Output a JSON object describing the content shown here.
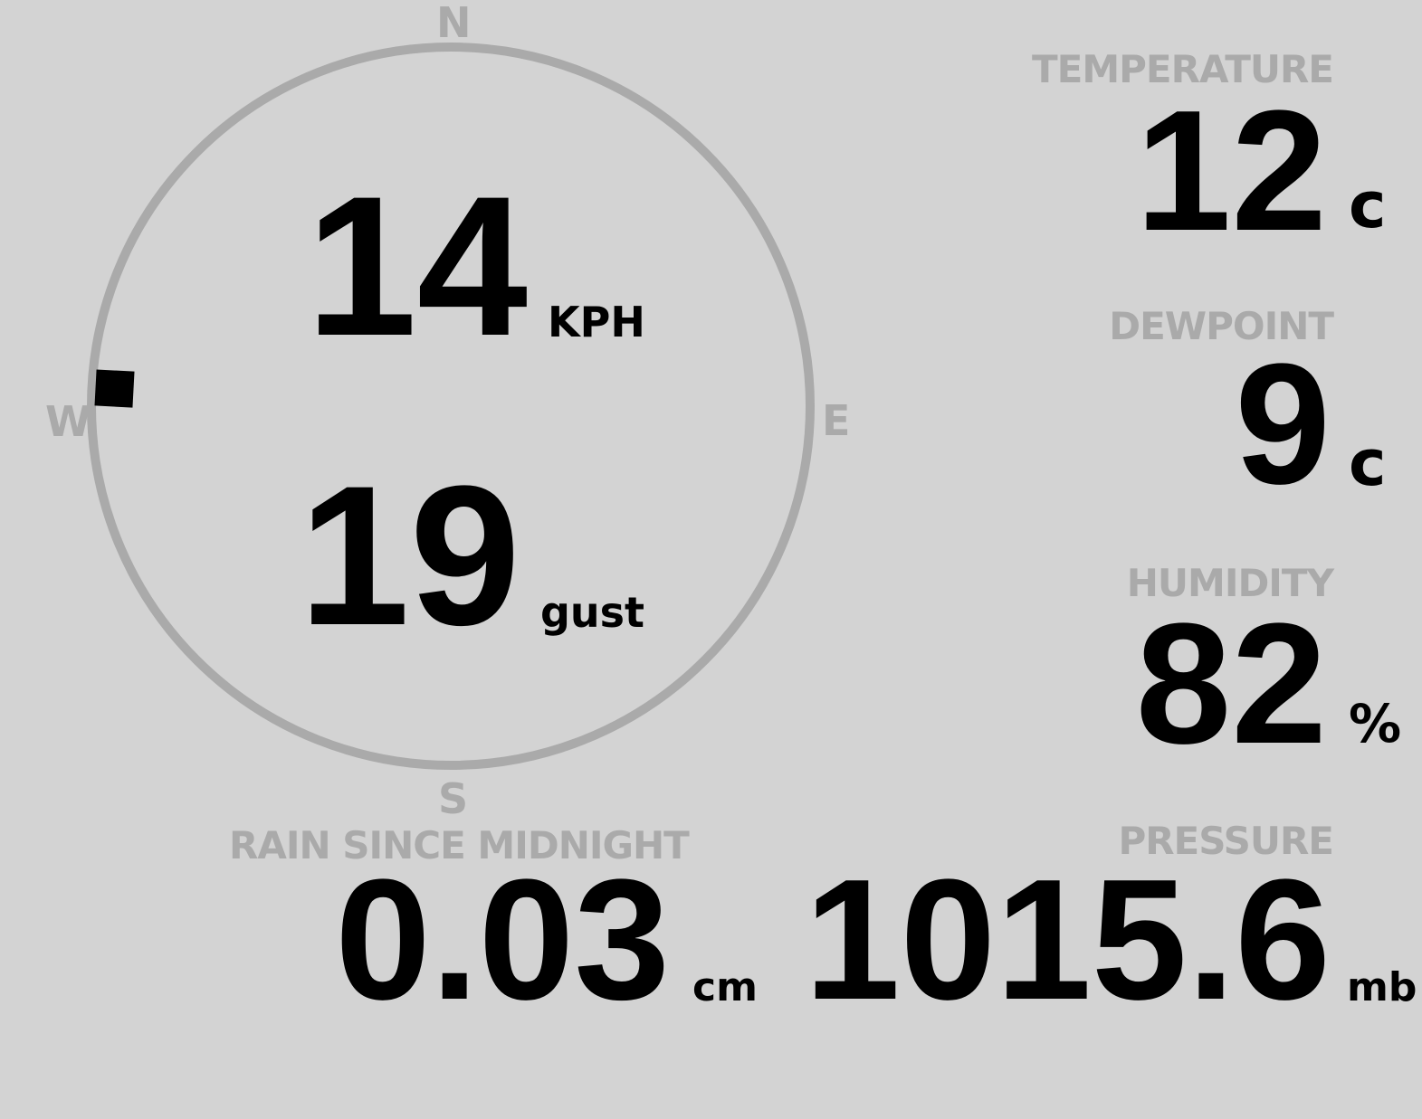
{
  "colors": {
    "background": "#d3d3d3",
    "label": "#aaaaaa",
    "value": "#000000",
    "ring": "#aaaaaa"
  },
  "compass": {
    "north": "N",
    "south": "S",
    "east": "E",
    "west": "W",
    "wind_direction_deg": 273
  },
  "wind": {
    "speed": "14",
    "speed_unit": "KPH",
    "gust": "19",
    "gust_unit": "gust"
  },
  "temperature": {
    "label": "TEMPERATURE",
    "value": "12",
    "unit": "c"
  },
  "dewpoint": {
    "label": "DEWPOINT",
    "value": "9",
    "unit": "c"
  },
  "humidity": {
    "label": "HUMIDITY",
    "value": "82",
    "unit": "%"
  },
  "rain": {
    "label": "RAIN SINCE MIDNIGHT",
    "value": "0.03",
    "unit": "cm"
  },
  "pressure": {
    "label": "PRESSURE",
    "value": "1015.6",
    "unit": "mb"
  }
}
